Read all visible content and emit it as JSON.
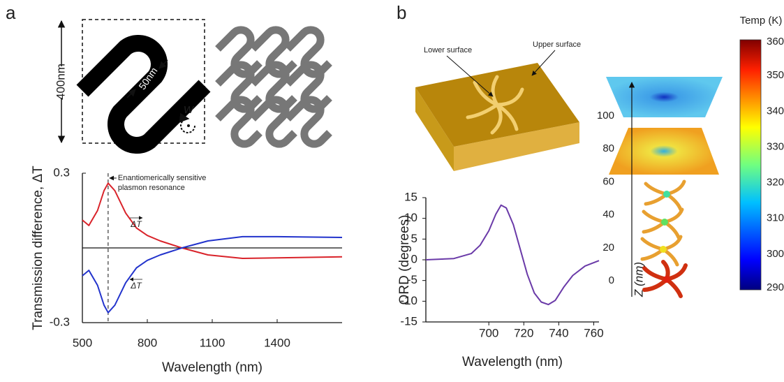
{
  "panel_labels": [
    "a",
    "b"
  ],
  "scale_label": "400nm",
  "width_label": "50nm",
  "rotation_label": "W",
  "surface_labels": [
    "Lower surface",
    "Upper surface"
  ],
  "colorbar": {
    "title": "Temp (K)",
    "ticks": [
      360,
      350,
      340,
      330,
      320,
      310,
      300,
      290
    ]
  },
  "z_axis": {
    "label": "Z (nm)",
    "ticks": [
      100,
      80,
      60,
      40,
      20,
      0
    ]
  },
  "chart_data": [
    {
      "type": "line",
      "y_label": "Transmission difference, ΔT",
      "x_label": "Wavelength (nm)",
      "annotation": [
        "Enantiomerically sensitive",
        "plasmon resonance"
      ],
      "x": [
        500,
        530,
        570,
        600,
        619,
        650,
        700,
        750,
        800,
        860,
        960,
        1080,
        1240,
        1400,
        1700
      ],
      "xlim": [
        500,
        1700
      ],
      "xticks": [
        500,
        800,
        1100,
        1400
      ],
      "ylim": [
        -0.3,
        0.3
      ],
      "yticks": [
        -0.3,
        0.3
      ],
      "series": [
        {
          "name": "ΔT",
          "color": "#d9232a",
          "values": [
            0.112,
            0.09,
            0.15,
            0.23,
            0.26,
            0.23,
            0.14,
            0.08,
            0.05,
            0.028,
            0,
            -0.028,
            -0.042,
            -0.04,
            -0.036
          ]
        },
        {
          "name": "ΔT",
          "color": "#2233cc",
          "values": [
            -0.112,
            -0.09,
            -0.15,
            -0.23,
            -0.26,
            -0.23,
            -0.14,
            -0.08,
            -0.05,
            -0.028,
            0,
            0.028,
            0.045,
            0.045,
            0.042
          ]
        }
      ]
    },
    {
      "type": "line",
      "y_label": "ORD (degrees)",
      "x_label": "Wavelength (nm)",
      "x": [
        664,
        680,
        690,
        695,
        700,
        704,
        707,
        710,
        714,
        718,
        722,
        726,
        730,
        734,
        738,
        743,
        748,
        755,
        763
      ],
      "xlim": [
        664,
        763
      ],
      "xticks": [
        700,
        720,
        740,
        760
      ],
      "ylim": [
        -15,
        15
      ],
      "yticks": [
        -15,
        -10,
        -5,
        0,
        5,
        10,
        15
      ],
      "series": [
        {
          "color": "#6a3aa8",
          "values": [
            0,
            0.3,
            1.5,
            3.5,
            7,
            11,
            13.2,
            12.5,
            8.5,
            2.5,
            -3.5,
            -8,
            -10.2,
            -10.8,
            -9.8,
            -6.5,
            -3.8,
            -1.5,
            -0.2
          ]
        }
      ]
    }
  ]
}
